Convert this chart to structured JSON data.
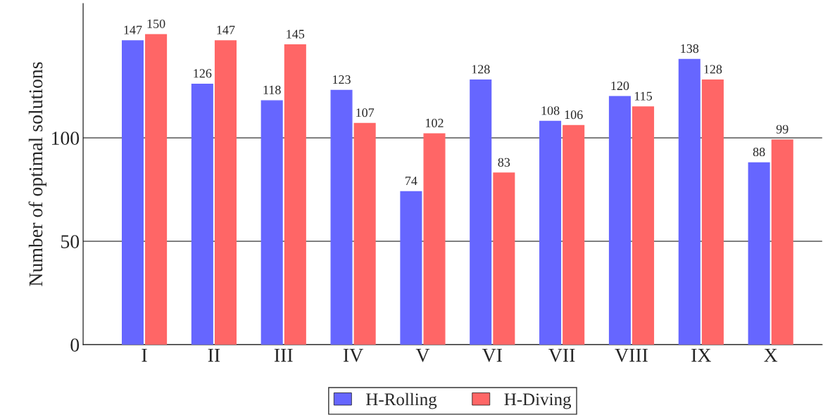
{
  "chart_data": {
    "type": "bar",
    "ylabel": "Number of optimal solutions",
    "categories": [
      "I",
      "II",
      "III",
      "IV",
      "V",
      "VI",
      "VII",
      "VIII",
      "IX",
      "X"
    ],
    "series": [
      {
        "name": "H-Rolling",
        "color": "#6666ff",
        "values": [
          147,
          126,
          118,
          123,
          74,
          128,
          108,
          120,
          138,
          88
        ]
      },
      {
        "name": "H-Diving",
        "color": "#ff6666",
        "values": [
          150,
          147,
          145,
          107,
          102,
          83,
          106,
          115,
          128,
          99
        ]
      }
    ],
    "ylim": [
      0,
      165
    ],
    "yticks": [
      0,
      50,
      100
    ],
    "grid": "y",
    "legend": "bottom",
    "data_labels": true
  }
}
